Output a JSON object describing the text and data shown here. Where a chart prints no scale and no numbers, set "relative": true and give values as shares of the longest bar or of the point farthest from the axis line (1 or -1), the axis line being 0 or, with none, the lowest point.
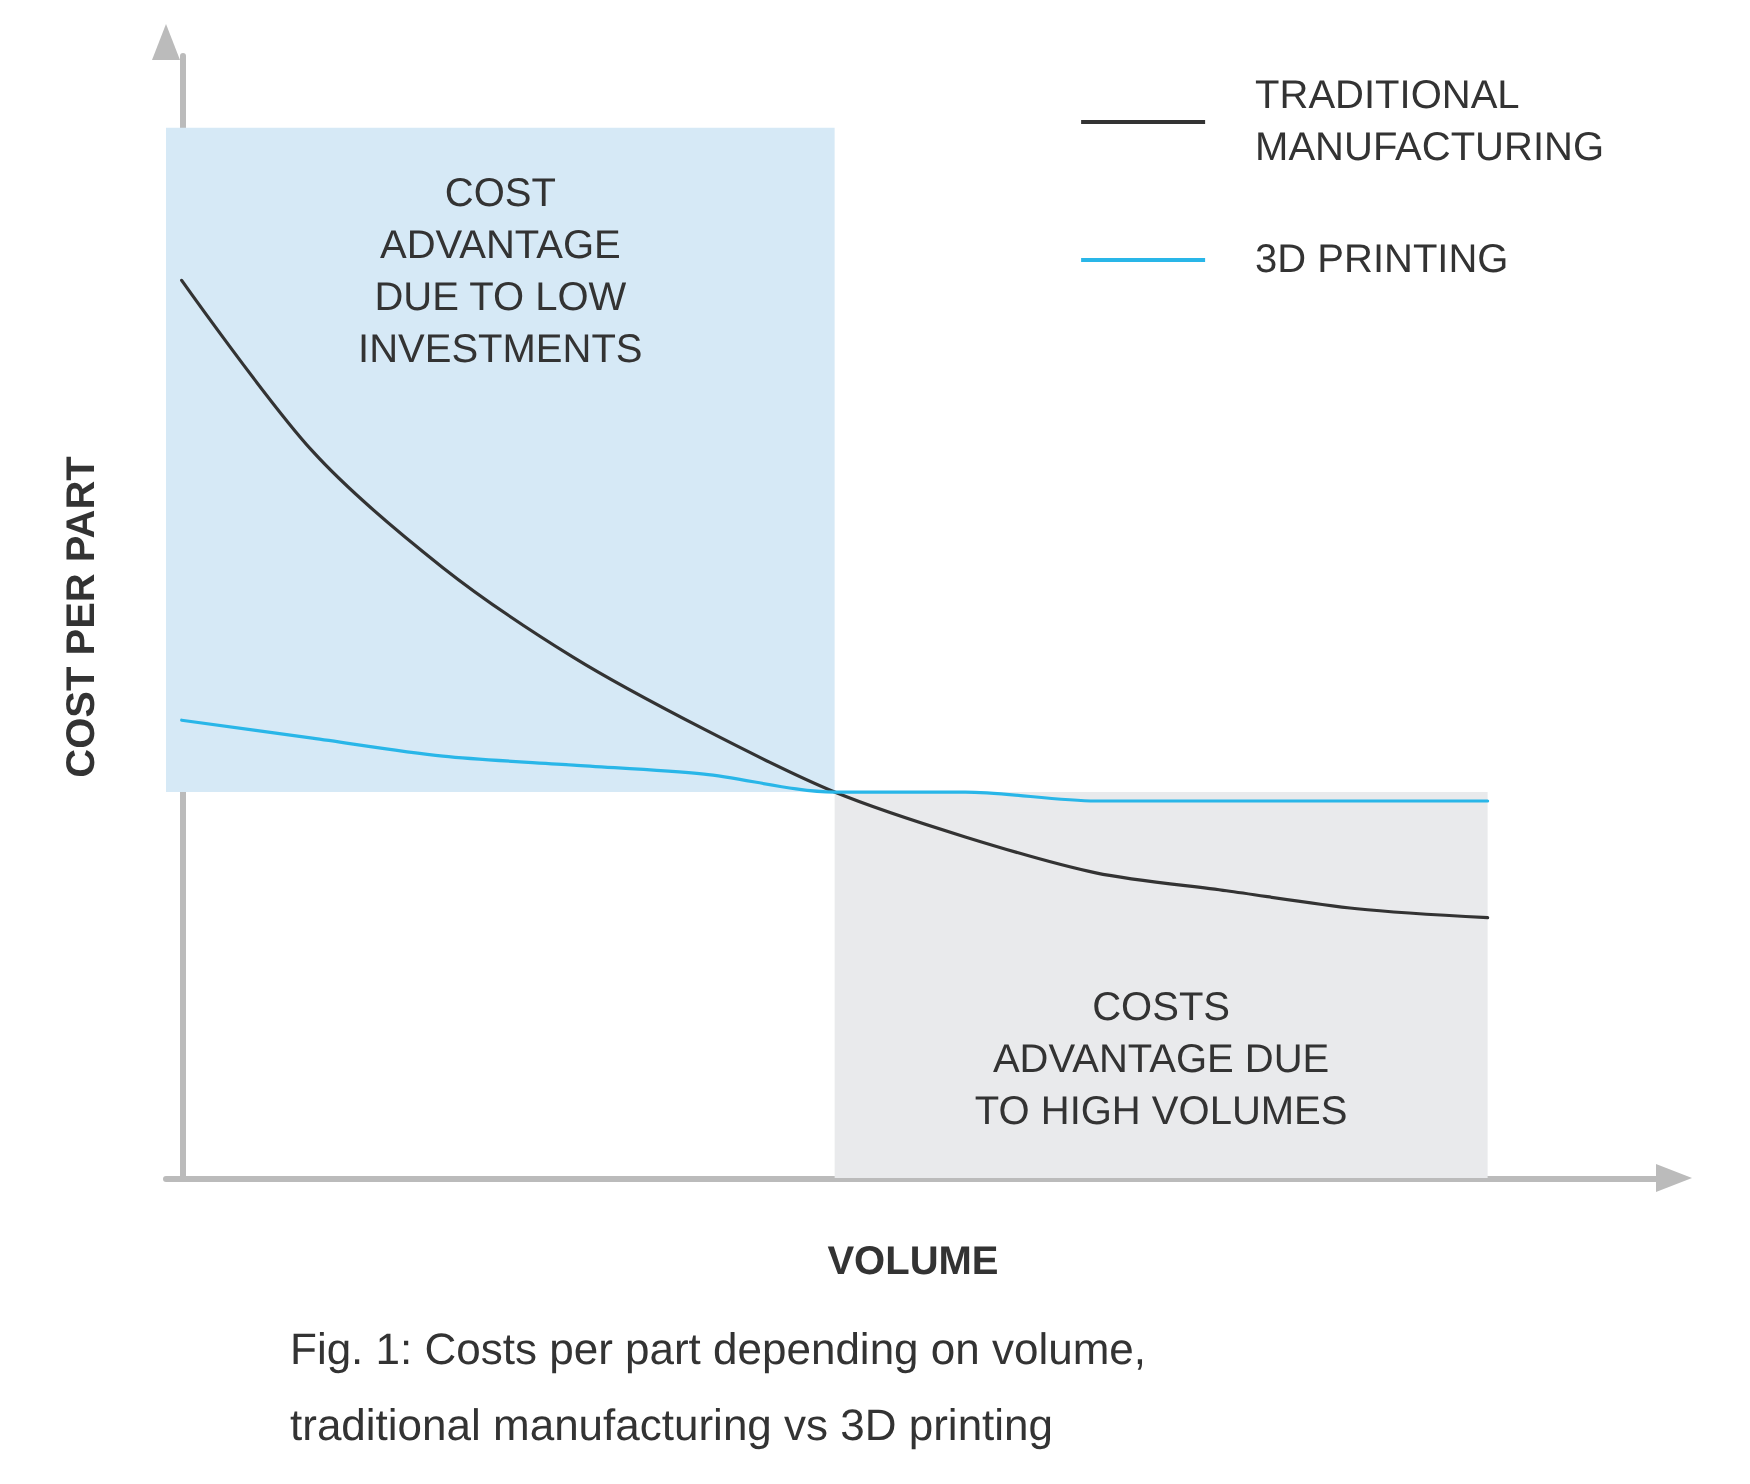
{
  "chart_data": {
    "type": "line",
    "relative": true,
    "xlabel": "VOLUME",
    "ylabel": "COST PER PART",
    "categories": [
      null,
      null,
      null,
      null,
      null,
      null,
      null,
      null,
      null,
      null,
      null
    ],
    "series": [
      {
        "name": "TRADITIONAL\nMANUFACTURING",
        "color": "#333333",
        "values": [
          1,
          0.81,
          0.68,
          0.58,
          0.5,
          0.43,
          0.38,
          0.34,
          0.32,
          0.3,
          0.29
        ]
      },
      {
        "name": "3D PRINTING",
        "color": "#29b6e8",
        "values": [
          0.51,
          0.49,
          0.47,
          0.46,
          0.45,
          0.43,
          0.43,
          0.42,
          0.42,
          0.42,
          0.42
        ]
      }
    ],
    "bands": [
      {
        "axis": "y",
        "from": 0.43,
        "to": 1.17,
        "label": "COST\nADVANTAGE\nDUE TO LOW\nINVESTMENTS",
        "color": "#d6e9f6"
      },
      {
        "axis": "y",
        "from": 0,
        "to": 0.43,
        "label": "COSTS\nADVANTAGE DUE\nTO HIGH VOLUMES",
        "color": "#e9eaec"
      }
    ],
    "annotations": [
      "Fig. 1: Costs per part depending on volume,\ntraditional manufacturing vs 3D printing"
    ],
    "legend": "top right",
    "marker": "none",
    "line_style": "solid",
    "grid": false
  }
}
